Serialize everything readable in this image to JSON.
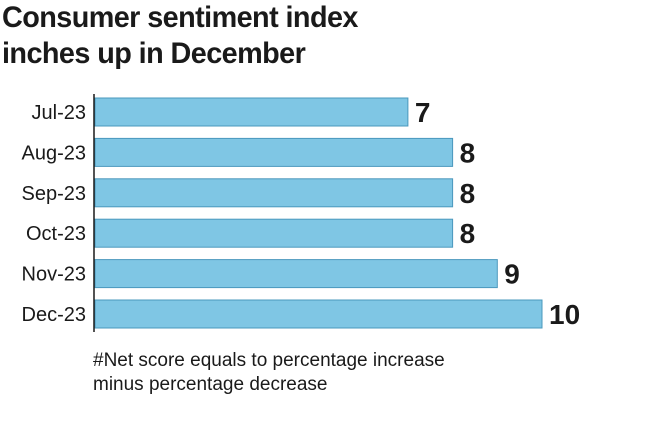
{
  "chart_data": {
    "type": "bar",
    "orientation": "horizontal",
    "title": "Consumer sentiment index inches up in December",
    "title_lines": [
      "Consumer sentiment index",
      "inches up in December"
    ],
    "categories": [
      "Jul-23",
      "Aug-23",
      "Sep-23",
      "Oct-23",
      "Nov-23",
      "Dec-23"
    ],
    "values": [
      7,
      8,
      8,
      8,
      9,
      10
    ],
    "xlabel": "",
    "ylabel": "",
    "xlim": [
      0,
      10
    ],
    "grid": false,
    "legend": "none",
    "data_labels": true,
    "bar_color": "#7fc6e4",
    "bar_outline_color": "#4a98bd",
    "axis_color": "#1a1a1a",
    "footnote": "#Net score equals to percentage increase\nminus percentage decrease"
  }
}
